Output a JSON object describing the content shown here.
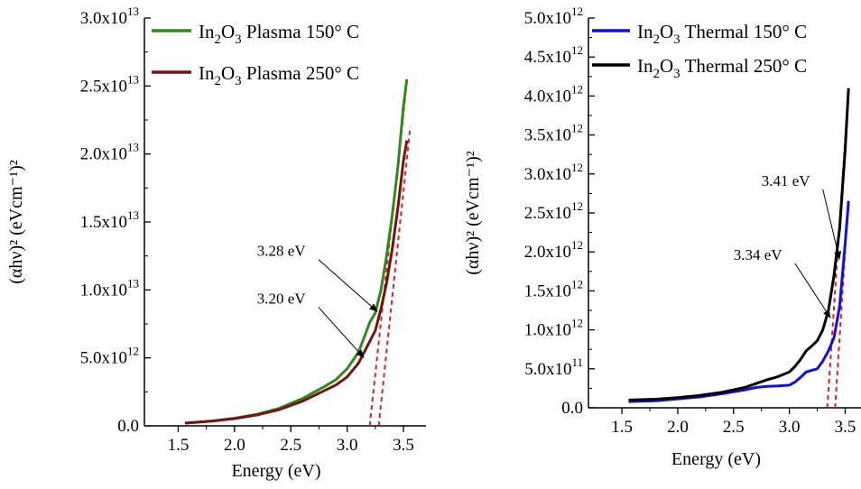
{
  "chart_data": [
    {
      "type": "line",
      "xlabel": "Energy (eV)",
      "ylabel": "(αhν)² (eVcm⁻¹)²",
      "xlim": [
        1.2,
        3.7
      ],
      "ylim": [
        0,
        30000000000000.0
      ],
      "xticks": [
        {
          "value": 1.5,
          "label": "1.5"
        },
        {
          "value": 2.0,
          "label": "2.0"
        },
        {
          "value": 2.5,
          "label": "2.5"
        },
        {
          "value": 3.0,
          "label": "3.0"
        },
        {
          "value": 3.5,
          "label": "3.5"
        }
      ],
      "yticks": [
        {
          "value": 0,
          "base": "0.0",
          "exp": ""
        },
        {
          "value": 5000000000000.0,
          "base": "5.0x10",
          "exp": "12"
        },
        {
          "value": 10000000000000.0,
          "base": "1.0x10",
          "exp": "13"
        },
        {
          "value": 15000000000000.0,
          "base": "1.5x10",
          "exp": "13"
        },
        {
          "value": 20000000000000.0,
          "base": "2.0x10",
          "exp": "13"
        },
        {
          "value": 25000000000000.0,
          "base": "2.5x10",
          "exp": "13"
        },
        {
          "value": 30000000000000.0,
          "base": "3.0x10",
          "exp": "13"
        }
      ],
      "legend_position": "top-right",
      "series": [
        {
          "name": "In2O3 Plasma 150° C",
          "color": "#2e8b1a",
          "x": [
            1.56,
            1.8,
            2.0,
            2.2,
            2.4,
            2.6,
            2.8,
            2.9,
            3.0,
            3.1,
            3.15,
            3.2,
            3.25,
            3.3,
            3.35,
            3.4,
            3.45,
            3.5,
            3.53
          ],
          "y": [
            200000000000.0,
            360000000000.0,
            560000000000.0,
            850000000000.0,
            1300000000000.0,
            2000000000000.0,
            2900000000000.0,
            3400000000000.0,
            4200000000000.0,
            5400000000000.0,
            6500000000000.0,
            7600000000000.0,
            8300000000000.0,
            10000000000000.0,
            12500000000000.0,
            15500000000000.0,
            19000000000000.0,
            23500000000000.0,
            25500000000000.0
          ]
        },
        {
          "name": "In2O3 Plasma 250° C",
          "color": "#7a1010",
          "x": [
            1.56,
            1.8,
            2.0,
            2.2,
            2.4,
            2.6,
            2.8,
            2.9,
            3.0,
            3.1,
            3.15,
            3.2,
            3.25,
            3.3,
            3.35,
            3.4,
            3.45,
            3.5,
            3.53
          ],
          "y": [
            200000000000.0,
            350000000000.0,
            530000000000.0,
            800000000000.0,
            1200000000000.0,
            1800000000000.0,
            2600000000000.0,
            3000000000000.0,
            3600000000000.0,
            4600000000000.0,
            5400000000000.0,
            6200000000000.0,
            7000000000000.0,
            8600000000000.0,
            10500000000000.0,
            13000000000000.0,
            16000000000000.0,
            19500000000000.0,
            21000000000000.0
          ]
        }
      ],
      "fit_lines": [
        {
          "x": [
            3.2,
            3.52
          ],
          "y": [
            0,
            24500000000000.0
          ],
          "color": "#e02020"
        },
        {
          "x": [
            3.28,
            3.56
          ],
          "y": [
            0,
            22000000000000.0
          ],
          "color": "#e02020"
        }
      ],
      "annotations": [
        {
          "text": "3.28 eV",
          "tx": 2.2,
          "ty": 12500000000000.0,
          "ax": 3.27,
          "ay": 8400000000000.0
        },
        {
          "text": "3.20 eV",
          "tx": 2.2,
          "ty": 9000000000000.0,
          "ax": 3.15,
          "ay": 5000000000000.0
        }
      ]
    },
    {
      "type": "line",
      "xlabel": "Energy (eV)",
      "ylabel": "(αhν)² (eVcm⁻¹)²",
      "xlim": [
        1.2,
        3.65
      ],
      "ylim": [
        0,
        5000000000000.0
      ],
      "xticks": [
        {
          "value": 1.5,
          "label": "1.5"
        },
        {
          "value": 2.0,
          "label": "2.0"
        },
        {
          "value": 2.5,
          "label": "2.5"
        },
        {
          "value": 3.0,
          "label": "3.0"
        },
        {
          "value": 3.5,
          "label": "3.5"
        }
      ],
      "yticks": [
        {
          "value": 0,
          "base": "0.0",
          "exp": ""
        },
        {
          "value": 500000000000.0,
          "base": "5.0x10",
          "exp": "11"
        },
        {
          "value": 1000000000000.0,
          "base": "1.0x10",
          "exp": "12"
        },
        {
          "value": 1500000000000.0,
          "base": "1.5x10",
          "exp": "12"
        },
        {
          "value": 2000000000000.0,
          "base": "2.0x10",
          "exp": "12"
        },
        {
          "value": 2500000000000.0,
          "base": "2.5x10",
          "exp": "12"
        },
        {
          "value": 3000000000000.0,
          "base": "3.0x10",
          "exp": "12"
        },
        {
          "value": 3500000000000.0,
          "base": "3.5x10",
          "exp": "12"
        },
        {
          "value": 4000000000000.0,
          "base": "4.0x10",
          "exp": "12"
        },
        {
          "value": 4500000000000.0,
          "base": "4.5x10",
          "exp": "12"
        },
        {
          "value": 5000000000000.0,
          "base": "5.0x10",
          "exp": "12"
        }
      ],
      "legend_position": "top-right",
      "series": [
        {
          "name": "In2O3 Thermal 150° C",
          "color": "#1010e0",
          "x": [
            1.56,
            1.8,
            2.0,
            2.2,
            2.4,
            2.6,
            2.7,
            2.8,
            2.9,
            3.0,
            3.05,
            3.1,
            3.15,
            3.2,
            3.25,
            3.3,
            3.35,
            3.4,
            3.45,
            3.5,
            3.53
          ],
          "y": [
            80000000000.0,
            90000000000.0,
            115000000000.0,
            140000000000.0,
            180000000000.0,
            230000000000.0,
            260000000000.0,
            275000000000.0,
            280000000000.0,
            290000000000.0,
            330000000000.0,
            390000000000.0,
            460000000000.0,
            480000000000.0,
            500000000000.0,
            600000000000.0,
            730000000000.0,
            900000000000.0,
            1300000000000.0,
            2100000000000.0,
            2650000000000.0
          ]
        },
        {
          "name": "In2O3 Thermal 250° C",
          "color": "#000000",
          "x": [
            1.56,
            1.8,
            2.0,
            2.2,
            2.4,
            2.6,
            2.7,
            2.8,
            2.9,
            3.0,
            3.05,
            3.1,
            3.15,
            3.2,
            3.25,
            3.3,
            3.35,
            3.4,
            3.45,
            3.5,
            3.53
          ],
          "y": [
            100000000000.0,
            110000000000.0,
            130000000000.0,
            160000000000.0,
            200000000000.0,
            260000000000.0,
            310000000000.0,
            360000000000.0,
            400000000000.0,
            460000000000.0,
            530000000000.0,
            620000000000.0,
            730000000000.0,
            790000000000.0,
            860000000000.0,
            1000000000000.0,
            1250000000000.0,
            1700000000000.0,
            2300000000000.0,
            3300000000000.0,
            4100000000000.0
          ]
        }
      ],
      "fit_lines": [
        {
          "x": [
            3.34,
            3.53
          ],
          "y": [
            0,
            4100000000000.0
          ],
          "color": "#e02020"
        },
        {
          "x": [
            3.41,
            3.53
          ],
          "y": [
            0,
            2700000000000.0
          ],
          "color": "#e02020"
        }
      ],
      "annotations": [
        {
          "text": "3.41 eV",
          "tx": 2.75,
          "ty": 2850000000000.0,
          "ax": 3.45,
          "ay": 1900000000000.0
        },
        {
          "text": "3.34 eV",
          "tx": 2.5,
          "ty": 1900000000000.0,
          "ax": 3.37,
          "ay": 1150000000000.0
        }
      ]
    }
  ]
}
